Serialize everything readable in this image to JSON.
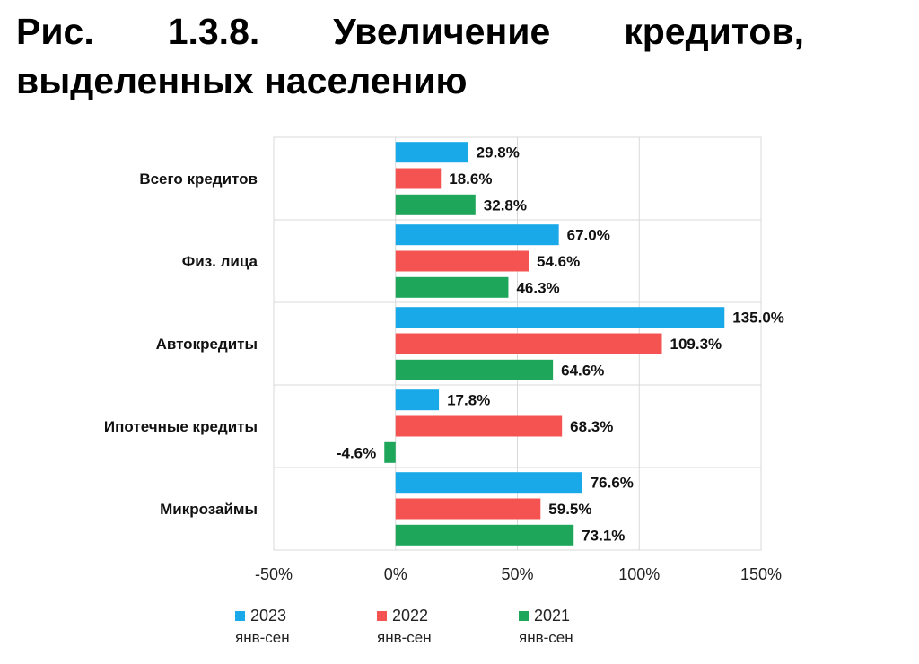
{
  "title": {
    "line1": [
      "Рис.",
      "1.3.8.",
      "Увеличение",
      "кредитов,"
    ],
    "line2": "выделенных населению"
  },
  "chart_data": {
    "type": "bar",
    "orientation": "horizontal",
    "categories": [
      "Всего кредитов",
      "Физ. лица",
      "Автокредиты",
      "Ипотечные кредиты",
      "Микрозаймы"
    ],
    "series": [
      {
        "name": "2023",
        "sub": "янв-сен",
        "color": "#1aa9e8",
        "values": [
          29.8,
          67.0,
          135.0,
          17.8,
          76.6
        ],
        "labels": [
          "29.8%",
          "67.0%",
          "135.0%",
          "17.8%",
          "76.6%"
        ]
      },
      {
        "name": "2022",
        "sub": "янв-сен",
        "color": "#f55252",
        "values": [
          18.6,
          54.6,
          109.3,
          68.3,
          59.5
        ],
        "labels": [
          "18.6%",
          "54.6%",
          "109.3%",
          "68.3%",
          "59.5%"
        ]
      },
      {
        "name": "2021",
        "sub": "янв-сен",
        "color": "#1ea65a",
        "values": [
          32.8,
          46.3,
          64.6,
          -4.6,
          73.1
        ],
        "labels": [
          "32.8%",
          "46.3%",
          "64.6%",
          "-4.6%",
          "73.1%"
        ]
      }
    ],
    "xlim": [
      -50,
      150
    ],
    "xticks": [
      -50,
      0,
      50,
      100,
      150
    ],
    "xtick_labels": [
      "-50%",
      "0%",
      "50%",
      "100%",
      "150%"
    ],
    "grid": true,
    "legend_position": "bottom"
  }
}
